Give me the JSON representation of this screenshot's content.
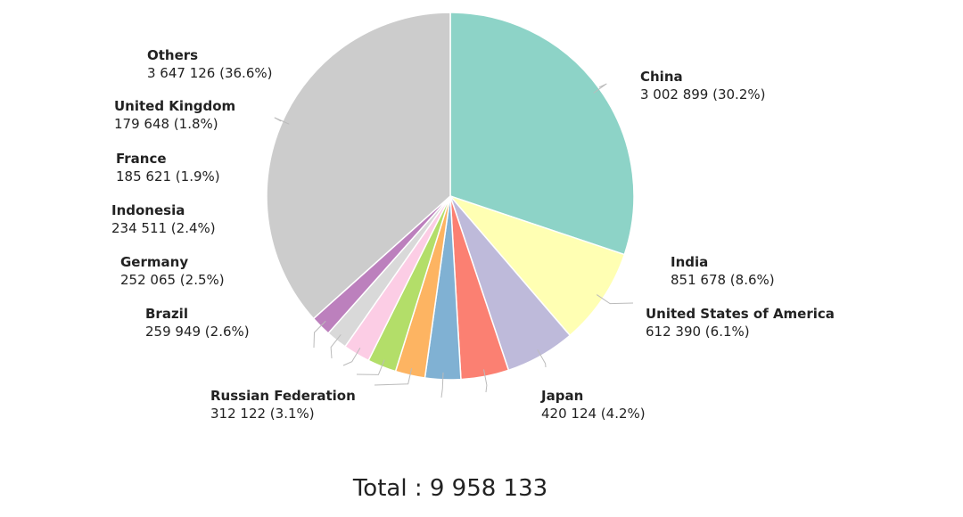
{
  "chart_data": {
    "type": "pie",
    "categories": [
      "China",
      "India",
      "United States of America",
      "Japan",
      "Russian Federation",
      "Brazil",
      "Germany",
      "Indonesia",
      "France",
      "United Kingdom",
      "Others"
    ],
    "values": [
      3002899,
      851678,
      612390,
      420124,
      312122,
      259949,
      252065,
      234511,
      185621,
      179648,
      3647126
    ],
    "value_labels": [
      "3 002 899 (30.2%)",
      "851 678 (8.6%)",
      "612 390 (6.1%)",
      "420 124 (4.2%)",
      "312 122 (3.1%)",
      "259 949 (2.6%)",
      "252 065 (2.5%)",
      "234 511 (2.4%)",
      "185 621 (1.9%)",
      "179 648 (1.8%)",
      "3 647 126 (36.6%)"
    ],
    "colors": [
      "#8dd3c7",
      "#ffffb3",
      "#bebada",
      "#fb8072",
      "#80b1d3",
      "#fdb462",
      "#b3de69",
      "#fccde5",
      "#d9d9d9",
      "#bc80bd",
      "#cccccc"
    ],
    "footer": "Total : 9 958 133"
  }
}
